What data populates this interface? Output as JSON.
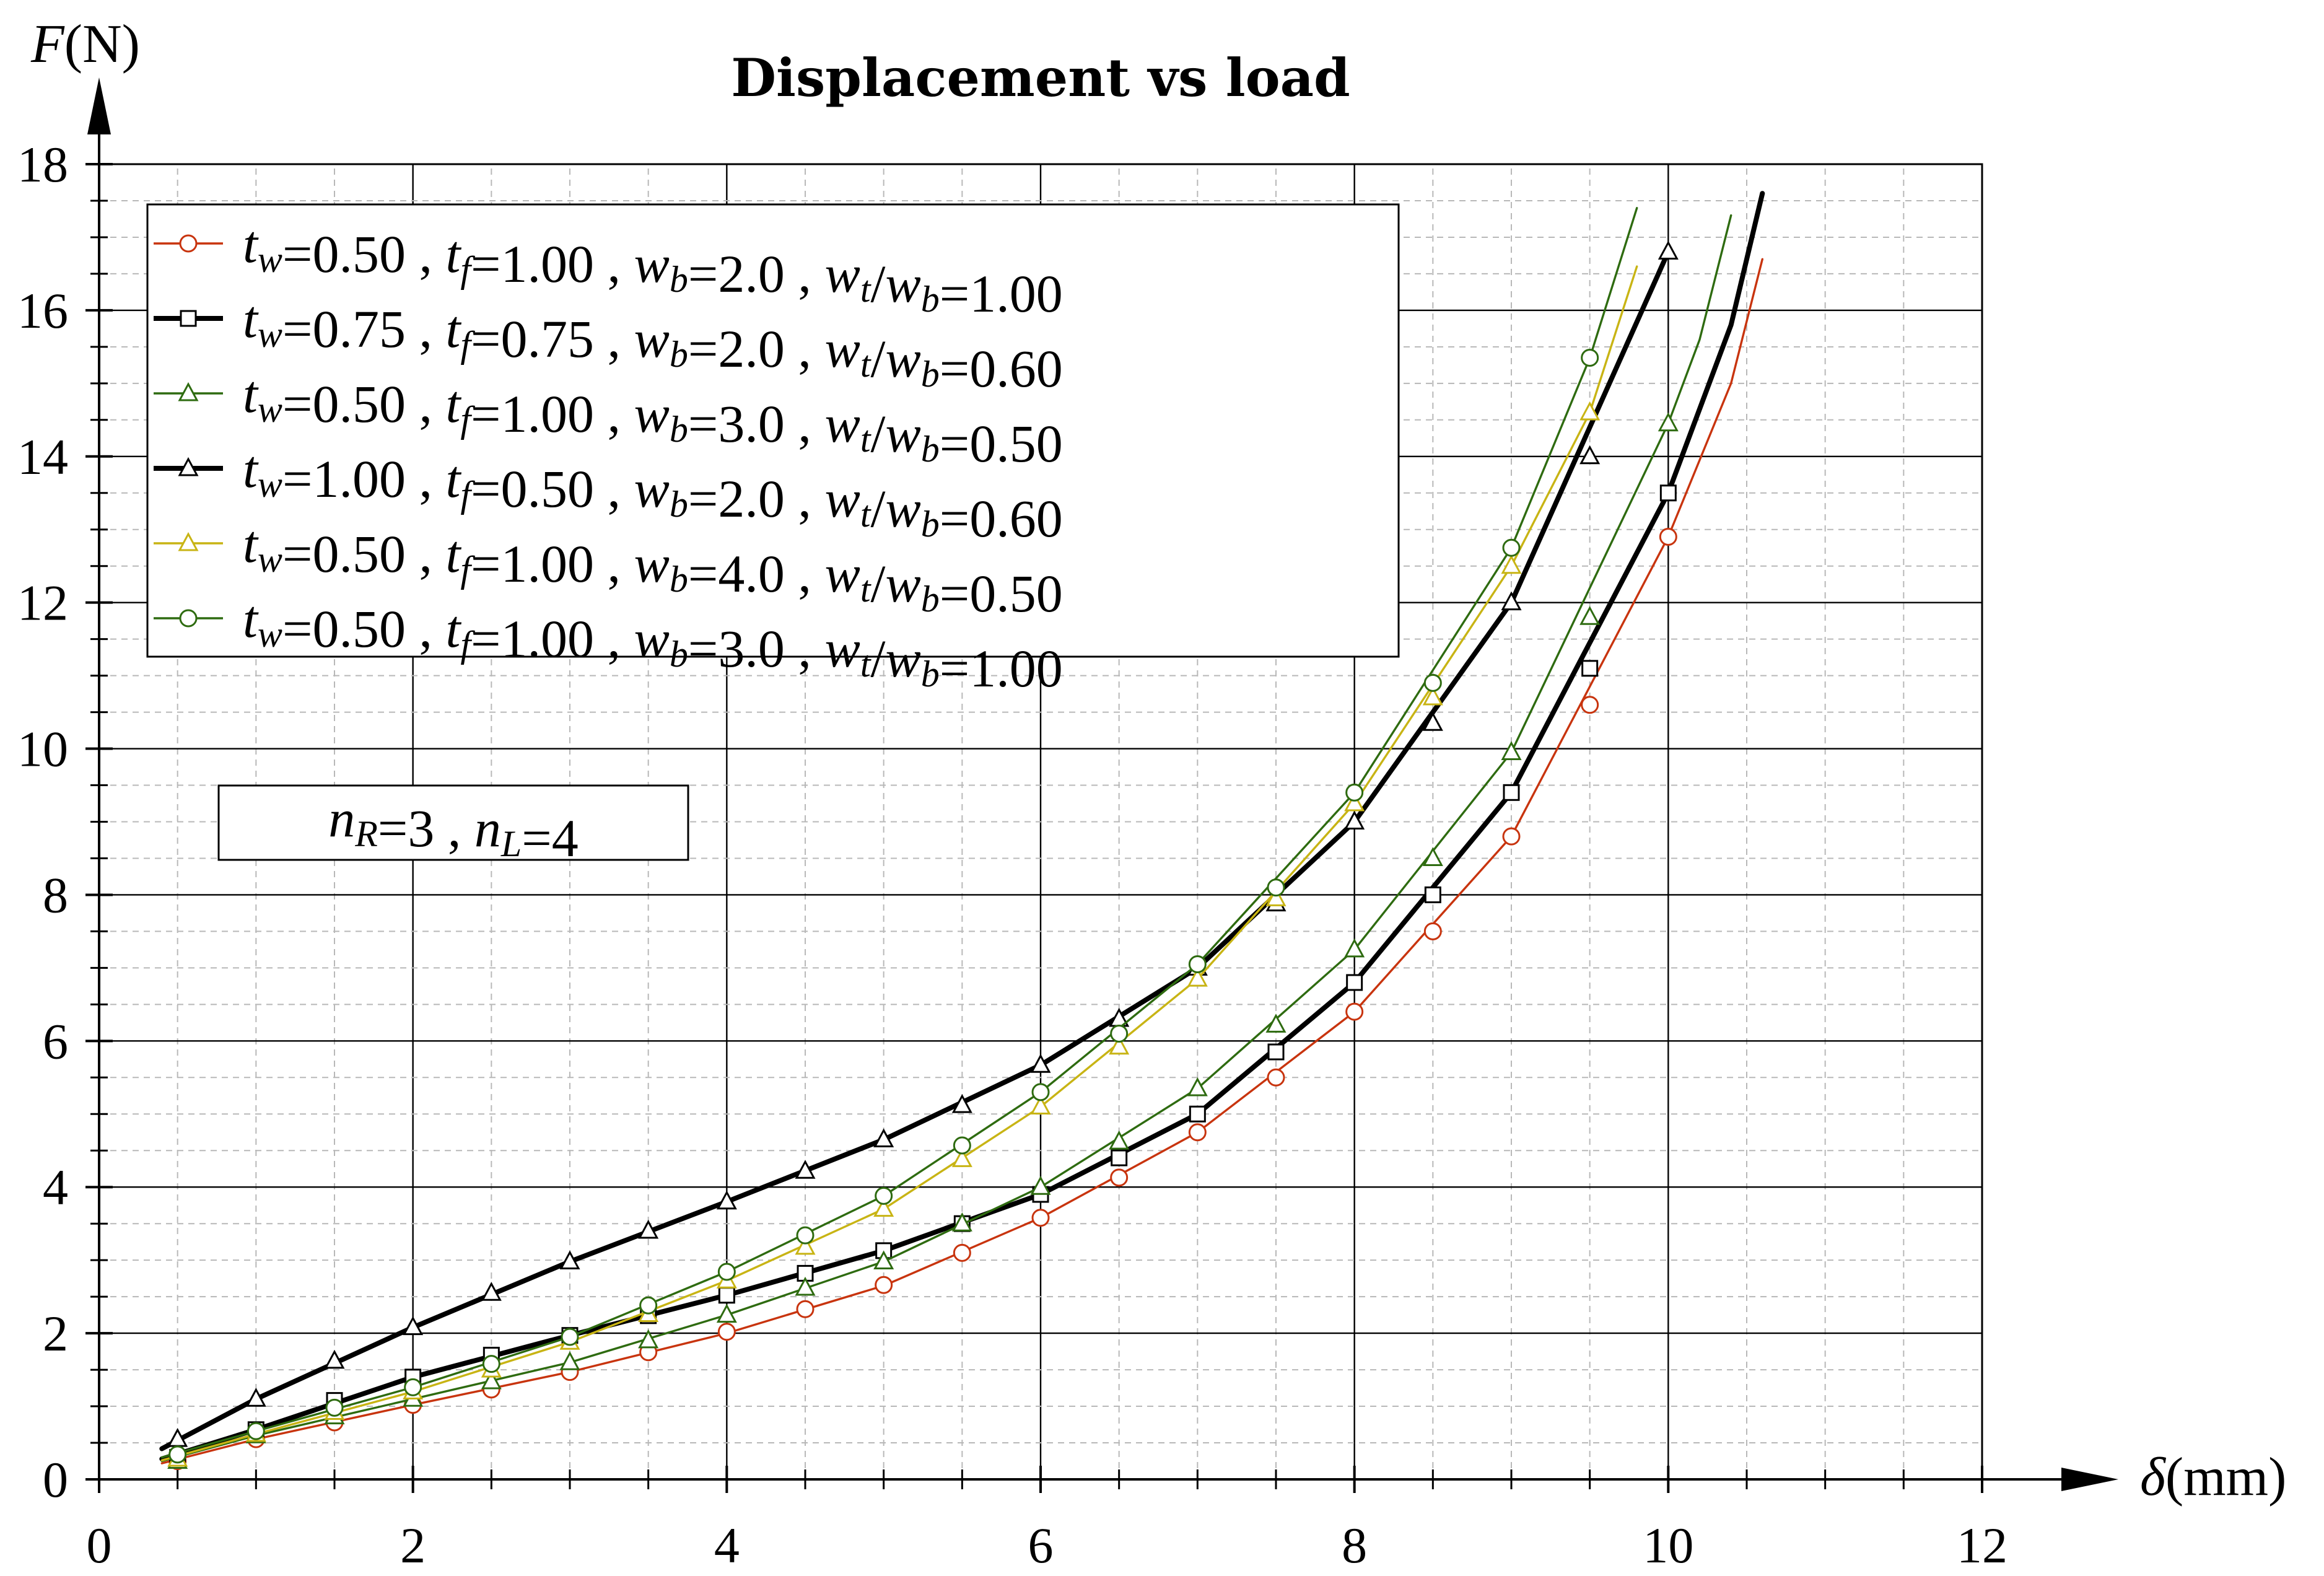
{
  "chart_data": {
    "type": "line",
    "title": "Displacement vs load",
    "xlabel": "δ(mm)",
    "ylabel": "F(N)",
    "xlim": [
      0,
      12
    ],
    "ylim": [
      0,
      18
    ],
    "xticks": [
      0,
      2,
      4,
      6,
      8,
      10,
      12
    ],
    "yticks": [
      0,
      2,
      4,
      6,
      8,
      10,
      12,
      14,
      16,
      18
    ],
    "grid": true,
    "legend_position": "top-left",
    "annotation": "n_R=3 , n_L=4",
    "series": [
      {
        "name": "t_w=0.50 , t_f=1.00 , w_b=2.0 , w_t/w_b=1.00",
        "legend": {
          "tw": "0.50",
          "tf": "1.00",
          "wb": "2.0",
          "ratio": "1.00"
        },
        "color": "#c8340e",
        "marker": "circle",
        "line_width": "thin",
        "curve": [
          [
            0.4,
            0.22
          ],
          [
            1,
            0.55
          ],
          [
            2,
            1.02
          ],
          [
            3,
            1.47
          ],
          [
            4,
            2.0
          ],
          [
            5,
            2.65
          ],
          [
            6,
            3.58
          ],
          [
            7,
            4.75
          ],
          [
            8,
            6.4
          ],
          [
            9,
            8.8
          ],
          [
            10,
            12.9
          ],
          [
            10.4,
            15.0
          ],
          [
            10.6,
            16.7
          ]
        ],
        "points": [
          [
            0.5,
            0.25
          ],
          [
            1,
            0.55
          ],
          [
            1.5,
            0.78
          ],
          [
            2,
            1.02
          ],
          [
            2.5,
            1.23
          ],
          [
            3,
            1.47
          ],
          [
            3.5,
            1.74
          ],
          [
            4,
            2.02
          ],
          [
            4.5,
            2.33
          ],
          [
            5,
            2.66
          ],
          [
            5.5,
            3.1
          ],
          [
            6,
            3.58
          ],
          [
            6.5,
            4.13
          ],
          [
            7,
            4.75
          ],
          [
            7.5,
            5.5
          ],
          [
            8,
            6.4
          ],
          [
            8.5,
            7.5
          ],
          [
            9,
            8.8
          ],
          [
            9.5,
            10.6
          ],
          [
            10,
            12.9
          ]
        ]
      },
      {
        "name": "t_w=0.75 , t_f=0.75 , w_b=2.0 , w_t/w_b=0.60",
        "legend": {
          "tw": "0.75",
          "tf": "0.75",
          "wb": "2.0",
          "ratio": "0.60"
        },
        "color": "#000000",
        "marker": "square",
        "line_width": "thick",
        "curve": [
          [
            0.4,
            0.28
          ],
          [
            1,
            0.68
          ],
          [
            2,
            1.4
          ],
          [
            3,
            1.97
          ],
          [
            4,
            2.52
          ],
          [
            5,
            3.13
          ],
          [
            6,
            3.9
          ],
          [
            7,
            5.0
          ],
          [
            8,
            6.8
          ],
          [
            9,
            9.4
          ],
          [
            10,
            13.5
          ],
          [
            10.4,
            15.8
          ],
          [
            10.6,
            17.6
          ]
        ],
        "points": [
          [
            0.5,
            0.3
          ],
          [
            1,
            0.68
          ],
          [
            1.5,
            1.08
          ],
          [
            2,
            1.4
          ],
          [
            2.5,
            1.7
          ],
          [
            3,
            1.97
          ],
          [
            3.5,
            2.24
          ],
          [
            4,
            2.52
          ],
          [
            4.5,
            2.82
          ],
          [
            5,
            3.13
          ],
          [
            5.5,
            3.5
          ],
          [
            6,
            3.9
          ],
          [
            6.5,
            4.4
          ],
          [
            7,
            5.0
          ],
          [
            7.5,
            5.85
          ],
          [
            8,
            6.8
          ],
          [
            8.5,
            8.0
          ],
          [
            9,
            9.4
          ],
          [
            9.5,
            11.1
          ],
          [
            10,
            13.5
          ]
        ]
      },
      {
        "name": "t_w=0.50 , t_f=1.00 , w_b=3.0 , w_t/w_b=0.50",
        "legend": {
          "tw": "0.50",
          "tf": "1.00",
          "wb": "3.0",
          "ratio": "0.50"
        },
        "color": "#2e6b10",
        "marker": "triangle",
        "line_width": "thin",
        "curve": [
          [
            0.4,
            0.25
          ],
          [
            1,
            0.6
          ],
          [
            2,
            1.1
          ],
          [
            3,
            1.6
          ],
          [
            4,
            2.25
          ],
          [
            5,
            2.98
          ],
          [
            6,
            4.0
          ],
          [
            7,
            5.35
          ],
          [
            8,
            7.25
          ],
          [
            9,
            9.95
          ],
          [
            10,
            14.45
          ],
          [
            10.2,
            15.6
          ],
          [
            10.4,
            17.3
          ]
        ],
        "points": [
          [
            0.5,
            0.25
          ],
          [
            1,
            0.6
          ],
          [
            1.5,
            0.86
          ],
          [
            2,
            1.1
          ],
          [
            2.5,
            1.34
          ],
          [
            3,
            1.6
          ],
          [
            3.5,
            1.9
          ],
          [
            4,
            2.25
          ],
          [
            4.5,
            2.62
          ],
          [
            5,
            2.98
          ],
          [
            5.5,
            3.5
          ],
          [
            6,
            4.0
          ],
          [
            6.5,
            4.62
          ],
          [
            7,
            5.35
          ],
          [
            7.5,
            6.22
          ],
          [
            8,
            7.25
          ],
          [
            8.5,
            8.5
          ],
          [
            9,
            9.95
          ],
          [
            9.5,
            11.8
          ],
          [
            10,
            14.45
          ]
        ]
      },
      {
        "name": "t_w=1.00 , t_f=0.50 , w_b=2.0 , w_t/w_b=0.60",
        "legend": {
          "tw": "1.00",
          "tf": "0.50",
          "wb": "2.0",
          "ratio": "0.60"
        },
        "color": "#000000",
        "marker": "triangle",
        "line_width": "thick",
        "curve": [
          [
            0.4,
            0.42
          ],
          [
            1,
            1.1
          ],
          [
            2,
            2.08
          ],
          [
            3,
            2.98
          ],
          [
            4,
            3.8
          ],
          [
            5,
            4.65
          ],
          [
            6,
            5.67
          ],
          [
            7,
            7.0
          ],
          [
            8,
            9.0
          ],
          [
            9,
            12.0
          ],
          [
            10,
            16.8
          ]
        ],
        "points": [
          [
            0.5,
            0.55
          ],
          [
            1,
            1.1
          ],
          [
            1.5,
            1.62
          ],
          [
            2,
            2.08
          ],
          [
            2.5,
            2.55
          ],
          [
            3,
            2.98
          ],
          [
            3.5,
            3.4
          ],
          [
            4,
            3.8
          ],
          [
            4.5,
            4.22
          ],
          [
            5,
            4.65
          ],
          [
            5.5,
            5.12
          ],
          [
            6,
            5.67
          ],
          [
            6.5,
            6.3
          ],
          [
            7,
            7.0
          ],
          [
            7.5,
            7.88
          ],
          [
            8,
            9.0
          ],
          [
            8.5,
            10.35
          ],
          [
            9,
            12.0
          ],
          [
            9.5,
            14.0
          ],
          [
            10,
            16.8
          ]
        ]
      },
      {
        "name": "t_w=0.50 , t_f=1.00 , w_b=4.0 , w_t/w_b=0.50",
        "legend": {
          "tw": "0.50",
          "tf": "1.00",
          "wb": "4.0",
          "ratio": "0.50"
        },
        "color": "#c8b414",
        "marker": "triangle",
        "line_width": "thin",
        "curve": [
          [
            0.4,
            0.26
          ],
          [
            1,
            0.62
          ],
          [
            2,
            1.2
          ],
          [
            3,
            1.88
          ],
          [
            4,
            2.72
          ],
          [
            5,
            3.7
          ],
          [
            6,
            5.1
          ],
          [
            7,
            6.85
          ],
          [
            8,
            9.25
          ],
          [
            9,
            12.5
          ],
          [
            9.5,
            14.6
          ],
          [
            9.8,
            16.6
          ]
        ],
        "points": [
          [
            0.5,
            0.28
          ],
          [
            1,
            0.62
          ],
          [
            1.5,
            0.92
          ],
          [
            2,
            1.2
          ],
          [
            2.5,
            1.5
          ],
          [
            3,
            1.88
          ],
          [
            3.5,
            2.26
          ],
          [
            4,
            2.72
          ],
          [
            4.5,
            3.18
          ],
          [
            5,
            3.7
          ],
          [
            5.5,
            4.38
          ],
          [
            6,
            5.1
          ],
          [
            6.5,
            5.92
          ],
          [
            7,
            6.85
          ],
          [
            7.5,
            7.95
          ],
          [
            8,
            9.25
          ],
          [
            8.5,
            10.7
          ],
          [
            9,
            12.5
          ],
          [
            9.5,
            14.6
          ]
        ]
      },
      {
        "name": "t_w=0.50 , t_f=1.00 , w_b=3.0 , w_t/w_b=1.00",
        "legend": {
          "tw": "0.50",
          "tf": "1.00",
          "wb": "3.0",
          "ratio": "1.00"
        },
        "color": "#2e6b10",
        "marker": "circle",
        "line_width": "thin",
        "curve": [
          [
            0.4,
            0.3
          ],
          [
            1,
            0.66
          ],
          [
            2,
            1.26
          ],
          [
            3,
            1.95
          ],
          [
            4,
            2.84
          ],
          [
            5,
            3.88
          ],
          [
            6,
            5.3
          ],
          [
            7,
            7.05
          ],
          [
            8,
            9.4
          ],
          [
            9,
            12.75
          ],
          [
            9.5,
            15.35
          ],
          [
            9.8,
            17.4
          ]
        ],
        "points": [
          [
            0.5,
            0.34
          ],
          [
            1,
            0.66
          ],
          [
            1.5,
            0.98
          ],
          [
            2,
            1.26
          ],
          [
            2.5,
            1.58
          ],
          [
            3,
            1.95
          ],
          [
            3.5,
            2.38
          ],
          [
            4,
            2.84
          ],
          [
            4.5,
            3.34
          ],
          [
            5,
            3.88
          ],
          [
            5.5,
            4.57
          ],
          [
            6,
            5.3
          ],
          [
            6.5,
            6.1
          ],
          [
            7,
            7.05
          ],
          [
            7.5,
            8.1
          ],
          [
            8,
            9.4
          ],
          [
            8.5,
            10.9
          ],
          [
            9,
            12.75
          ],
          [
            9.5,
            15.35
          ]
        ]
      }
    ]
  }
}
